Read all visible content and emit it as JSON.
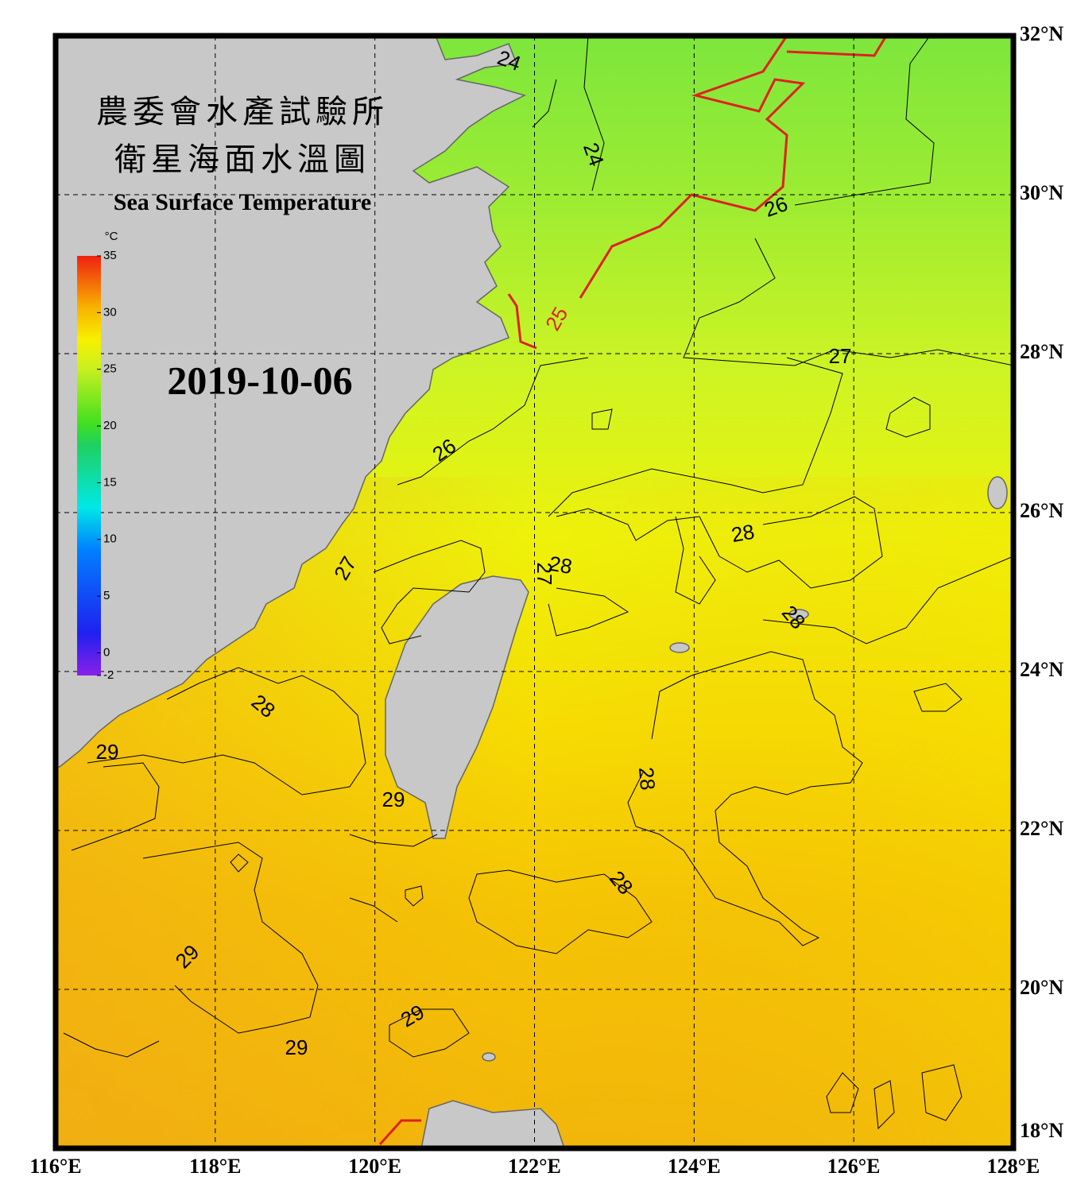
{
  "title_zh_1": "農委會水產試驗所",
  "title_zh_2": "衛星海面水溫圖",
  "title_en": "Sea Surface Temperature",
  "date": "2019-10-06",
  "colorbar": {
    "unit": "°C",
    "lim": [
      -2,
      35
    ],
    "ticks": [
      35,
      30,
      25,
      20,
      15,
      10,
      5,
      0,
      -2
    ]
  },
  "map": {
    "xlim": [
      116,
      128
    ],
    "ylim": [
      18,
      32
    ],
    "grid": true,
    "xticks": [
      {
        "value": 116,
        "label": "116°E"
      },
      {
        "value": 118,
        "label": "118°E"
      },
      {
        "value": 120,
        "label": "120°E"
      },
      {
        "value": 122,
        "label": "122°E"
      },
      {
        "value": 124,
        "label": "124°E"
      },
      {
        "value": 126,
        "label": "126°E"
      },
      {
        "value": 128,
        "label": "128°E"
      }
    ],
    "yticks": [
      {
        "value": 18,
        "label": "18°N"
      },
      {
        "value": 20,
        "label": "20°N"
      },
      {
        "value": 22,
        "label": "22°N"
      },
      {
        "value": 24,
        "label": "24°N"
      },
      {
        "value": 26,
        "label": "26°N"
      },
      {
        "value": 28,
        "label": "28°N"
      },
      {
        "value": 30,
        "label": "30°N"
      },
      {
        "value": 32,
        "label": "32°N"
      }
    ]
  },
  "contour_labels": [
    "24",
    "24",
    "26",
    "25",
    "27",
    "26",
    "27",
    "27",
    "28",
    "28",
    "28",
    "28",
    "29",
    "28",
    "29",
    "28",
    "29",
    "29",
    "29"
  ]
}
